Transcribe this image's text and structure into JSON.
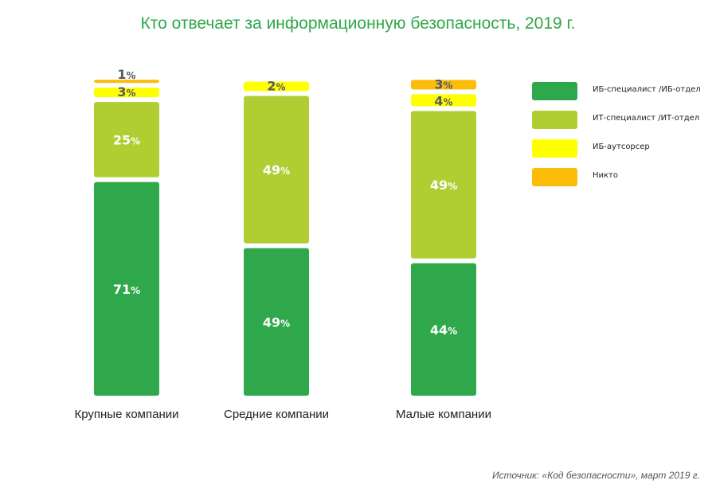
{
  "chart_data": {
    "type": "bar",
    "stacked": true,
    "title": "Кто отвечает за информационную безопасность, 2019 г.",
    "xlabel": "",
    "ylabel": "",
    "ylim": [
      0,
      100
    ],
    "grid": false,
    "legend_position": "right",
    "categories": [
      "Крупные компании",
      "Средние компании",
      "Малые компании"
    ],
    "series": [
      {
        "name": "ИБ-специалист /ИБ-отдел",
        "color": "#2ea84a",
        "values": [
          71,
          49,
          44
        ]
      },
      {
        "name": "ИТ-специалист /ИТ-отдел",
        "color": "#b0cd32",
        "values": [
          25,
          49,
          49
        ]
      },
      {
        "name": "ИБ-аутсорсер",
        "color": "#ffff00",
        "values": [
          3,
          2,
          4
        ]
      },
      {
        "name": "Никто",
        "color": "#fbbd08",
        "values": [
          1,
          0,
          3
        ]
      }
    ],
    "value_suffix": "%",
    "source": "Источник: «Код безопасности», март 2019 г."
  }
}
